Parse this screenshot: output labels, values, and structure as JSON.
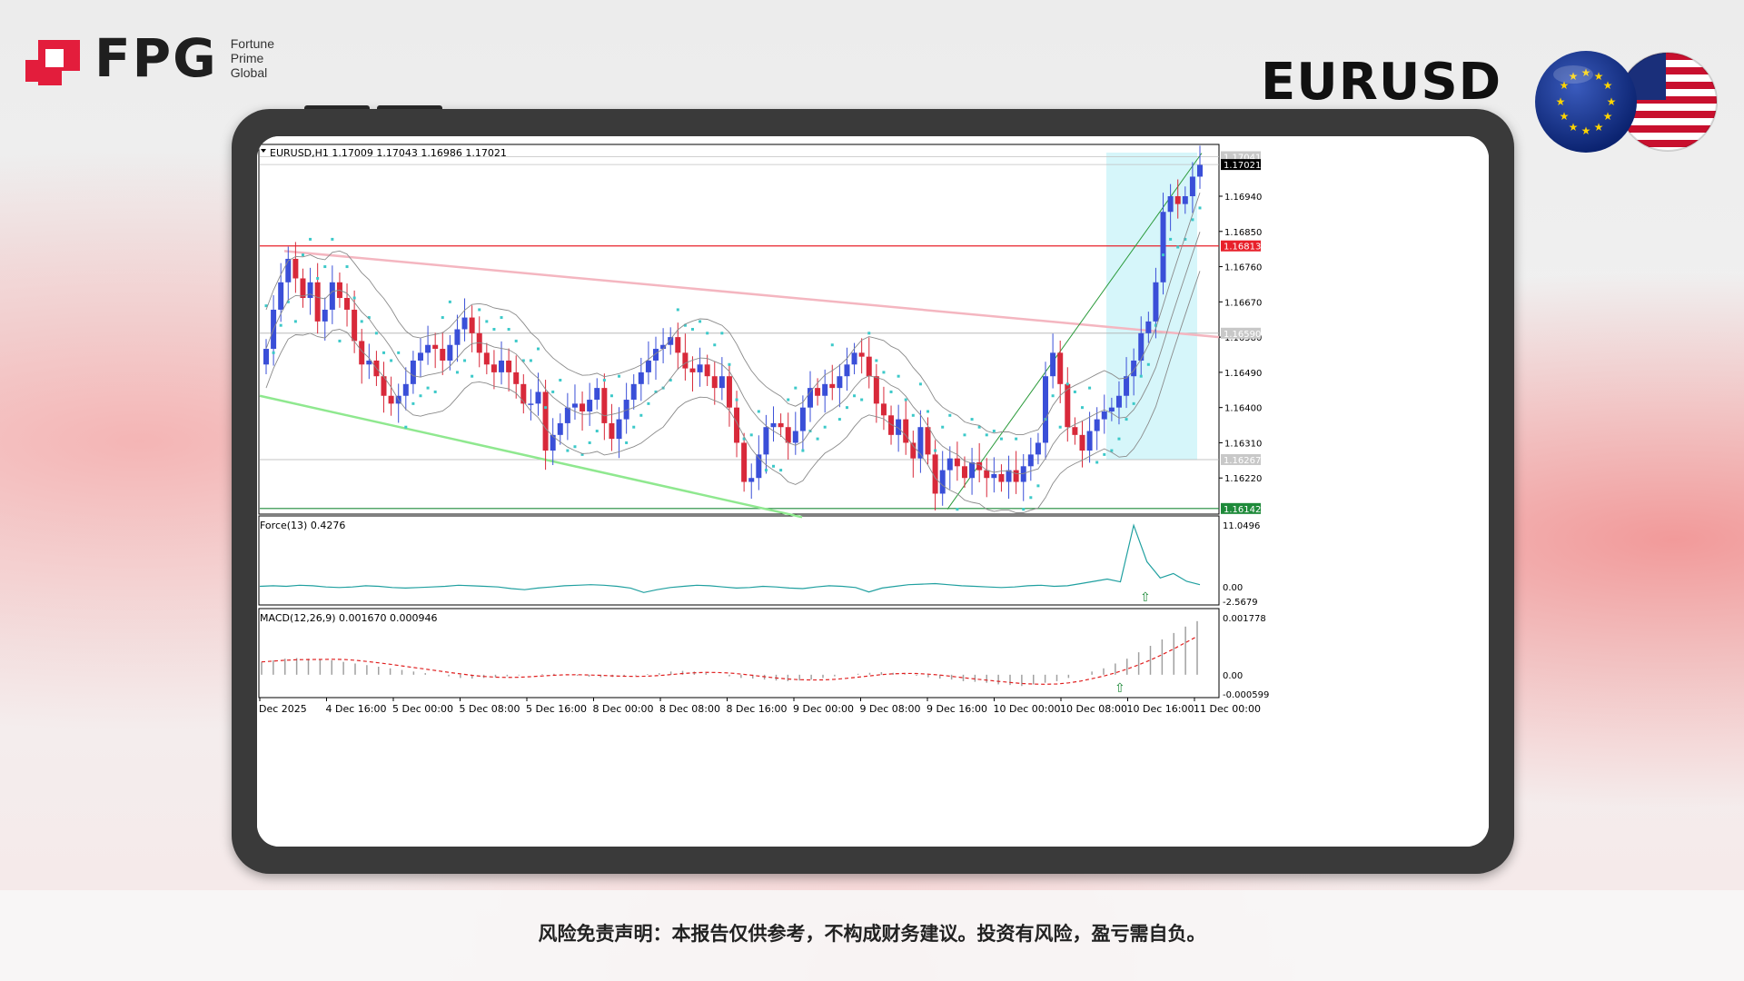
{
  "brand": {
    "name": "FPG",
    "sub": [
      "Fortune",
      "Prime",
      "Global"
    ],
    "color": "#e31d3c"
  },
  "pair_title": "EURUSD",
  "disclaimer": "风险免责声明：本报告仅供参考，不构成财务建议。投资有风险，盈亏需自负。",
  "chart_data": {
    "type": "candlestick",
    "header": "EURUSD,H1  1.17009 1.17043 1.16986 1.17021",
    "ylim": [
      1.1613,
      1.1707
    ],
    "y_ticks": [
      "1.16940",
      "1.16850",
      "1.16760",
      "1.16670",
      "1.16580",
      "1.16490",
      "1.16400",
      "1.16310",
      "1.16220"
    ],
    "price_tags": [
      {
        "label": "1.17041",
        "value": 1.17041,
        "color": "#c8c8c8",
        "text": "#fff"
      },
      {
        "label": "1.17021",
        "value": 1.17021,
        "color": "#000000",
        "text": "#fff"
      },
      {
        "label": "1.16813",
        "value": 1.16813,
        "color": "#e8202a",
        "text": "#fff"
      },
      {
        "label": "1.16590",
        "value": 1.1659,
        "color": "#c8c8c8",
        "text": "#fff"
      },
      {
        "label": "1.16267",
        "value": 1.16267,
        "color": "#c8c8c8",
        "text": "#fff"
      },
      {
        "label": "1.16142",
        "value": 1.16142,
        "color": "#1e8a3a",
        "text": "#fff"
      }
    ],
    "x_labels": [
      "Dec 2025",
      "4 Dec 16:00",
      "5 Dec 00:00",
      "5 Dec 08:00",
      "5 Dec 16:00",
      "8 Dec 00:00",
      "8 Dec 08:00",
      "8 Dec 16:00",
      "9 Dec 00:00",
      "9 Dec 08:00",
      "9 Dec 16:00",
      "10 Dec 00:00",
      "10 Dec 08:00",
      "10 Dec 16:00",
      "11 Dec 00:00"
    ],
    "candles_close": [
      1.1655,
      1.1665,
      1.1672,
      1.1678,
      1.1673,
      1.1668,
      1.1672,
      1.1662,
      1.1665,
      1.1672,
      1.1668,
      1.1665,
      1.1657,
      1.1651,
      1.1652,
      1.1648,
      1.1643,
      1.1641,
      1.1643,
      1.1646,
      1.1652,
      1.1654,
      1.1656,
      1.1655,
      1.1652,
      1.1656,
      1.166,
      1.1663,
      1.1659,
      1.1654,
      1.1651,
      1.1649,
      1.1652,
      1.1649,
      1.1646,
      1.1641,
      1.1641,
      1.1644,
      1.1629,
      1.1633,
      1.1636,
      1.164,
      1.1641,
      1.1639,
      1.1642,
      1.1645,
      1.1636,
      1.1632,
      1.1637,
      1.1642,
      1.1646,
      1.1649,
      1.1652,
      1.1655,
      1.1656,
      1.1658,
      1.1654,
      1.165,
      1.1649,
      1.1651,
      1.1648,
      1.1645,
      1.1648,
      1.164,
      1.1631,
      1.1621,
      1.1622,
      1.1628,
      1.1635,
      1.1636,
      1.1635,
      1.1631,
      1.1634,
      1.164,
      1.1645,
      1.1643,
      1.1646,
      1.1645,
      1.1648,
      1.1651,
      1.1654,
      1.1653,
      1.1648,
      1.1641,
      1.1638,
      1.1633,
      1.1637,
      1.1631,
      1.1627,
      1.1635,
      1.1628,
      1.1618,
      1.1624,
      1.1627,
      1.1625,
      1.1622,
      1.1626,
      1.1624,
      1.1622,
      1.1623,
      1.1621,
      1.1624,
      1.1621,
      1.1625,
      1.1628,
      1.1631,
      1.1648,
      1.1654,
      1.1646,
      1.1635,
      1.1633,
      1.1629,
      1.1634,
      1.1637,
      1.1639,
      1.164,
      1.1643,
      1.1648,
      1.1652,
      1.1659,
      1.1662,
      1.1672,
      1.169,
      1.1694,
      1.1692,
      1.1694,
      1.1699,
      1.1702
    ],
    "parabolic_sar_color": "#3cc9c9",
    "indicators": [
      {
        "name": "Force(13)",
        "header": "Force(13) 0.4276",
        "ticks": [
          "11.0496",
          "0.00",
          "-2.5679"
        ],
        "ylim": [
          -2.5679,
          11.0496
        ],
        "values": [
          0.1,
          0.2,
          0.1,
          0.3,
          0.2,
          0.0,
          -0.1,
          0.0,
          0.2,
          0.1,
          -0.1,
          -0.2,
          -0.1,
          0.0,
          0.1,
          0.3,
          0.2,
          0.1,
          0.0,
          -0.3,
          -0.5,
          -0.2,
          0.0,
          0.2,
          0.3,
          0.4,
          0.3,
          0.1,
          -0.2,
          -1.0,
          -0.5,
          -0.1,
          0.1,
          0.3,
          0.2,
          0.0,
          -0.2,
          -0.1,
          0.1,
          0.0,
          -0.2,
          -0.3,
          0.0,
          0.2,
          0.1,
          -0.1,
          -0.9,
          -0.2,
          0.1,
          0.4,
          0.5,
          0.6,
          0.4,
          0.2,
          0.1,
          0.0,
          -0.1,
          0.0,
          0.2,
          0.3,
          0.1,
          0.2,
          0.6,
          1.0,
          1.4,
          0.9,
          11.0,
          4.5,
          1.6,
          2.4,
          1.0,
          0.4
        ],
        "color": "#20a0a0"
      },
      {
        "name": "MACD(12,26,9)",
        "header": "MACD(12,26,9) 0.001670 0.000946",
        "ticks": [
          "0.001778",
          "0.00",
          "-0.000599"
        ],
        "ylim": [
          -0.000599,
          0.001778
        ],
        "histogram": [
          0.0004,
          0.00045,
          0.0005,
          0.00052,
          0.0005,
          0.00048,
          0.00045,
          0.0004,
          0.00035,
          0.0003,
          0.00025,
          0.0002,
          0.00015,
          0.0001,
          5e-05,
          0.0,
          -5e-05,
          -0.0001,
          -0.00012,
          -0.0001,
          -8e-05,
          -5e-05,
          -2e-05,
          0.0,
          2e-05,
          3e-05,
          0.0,
          -3e-05,
          -6e-05,
          -8e-05,
          -7e-05,
          -5e-05,
          -2e-05,
          2e-05,
          5e-05,
          0.0001,
          0.00012,
          0.0001,
          5e-05,
          0.0,
          -5e-05,
          -0.0001,
          -0.00012,
          -0.00015,
          -0.00018,
          -0.0002,
          -0.00018,
          -0.00015,
          -0.0001,
          -5e-05,
          0.0,
          3e-05,
          6e-05,
          8e-05,
          6e-05,
          2e-05,
          -3e-05,
          -8e-05,
          -0.00012,
          -0.00015,
          -0.0002,
          -0.00022,
          -0.00025,
          -0.0003,
          -0.00032,
          -0.00035,
          -0.0003,
          -0.00025,
          -0.0002,
          -0.0001,
          0.0,
          0.0001,
          0.0002,
          0.00035,
          0.0005,
          0.0007,
          0.0009,
          0.0011,
          0.0013,
          0.0015,
          0.00167
        ],
        "signal_color": "#e02020",
        "hist_color": "#a0a0a0"
      }
    ]
  }
}
